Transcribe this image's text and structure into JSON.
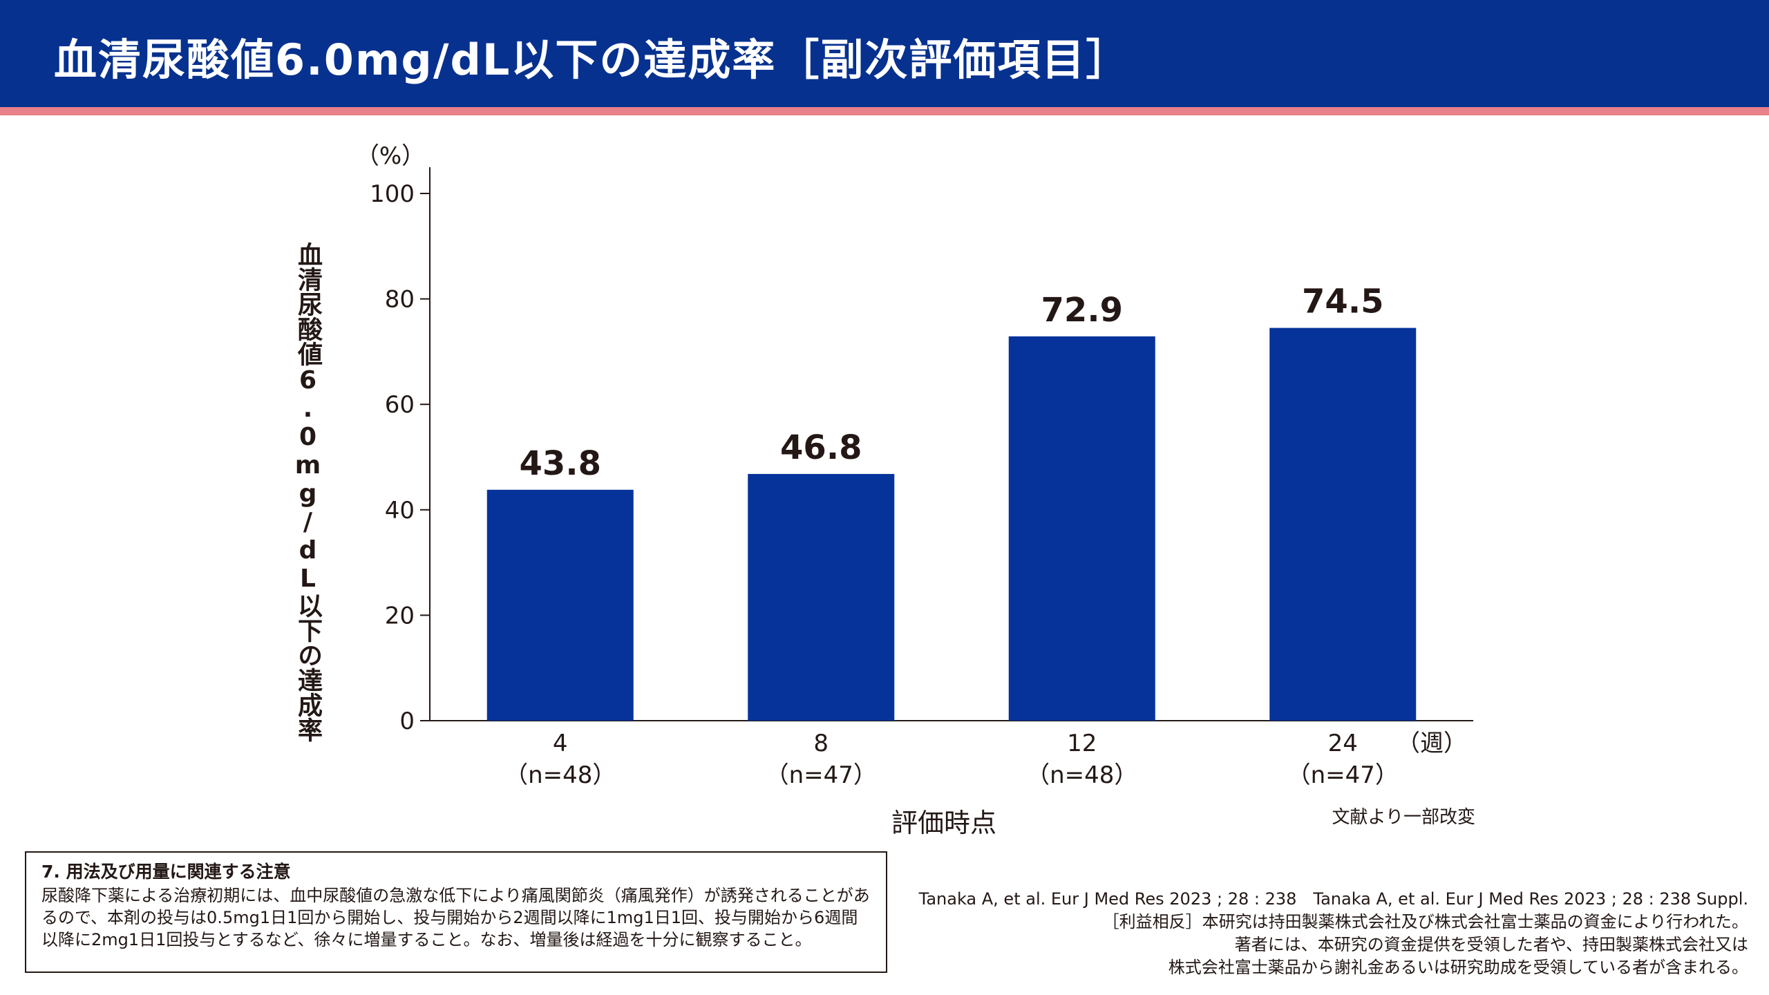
{
  "header": {
    "title": "血清尿酸値6.0mg/dL以下の達成率［副次評価項目］",
    "background_color": "#06318f",
    "stripe_color": "#e8818a"
  },
  "chart_data": {
    "type": "bar",
    "categories": [
      "4",
      "8",
      "12",
      "24"
    ],
    "category_sublabels": [
      "（n=48）",
      "（n=47）",
      "（n=48）",
      "（n=47）"
    ],
    "values": [
      43.8,
      46.8,
      72.9,
      74.5
    ],
    "data_labels": [
      "43.8",
      "46.8",
      "72.9",
      "74.5"
    ],
    "bar_color": "#06339a",
    "ylabel": "血清尿酸値6.0mg/dL以下の達成率",
    "y_unit": "（%）",
    "x_unit": "（週）",
    "xlabel": "評価時点",
    "ylim": [
      0,
      100
    ],
    "yticks": [
      0,
      20,
      40,
      60,
      80,
      100
    ],
    "grid": false
  },
  "source_note": "文献より一部改変",
  "notice": {
    "heading": "7. 用法及び用量に関連する注意",
    "body": "尿酸降下薬による治療初期には、血中尿酸値の急激な低下により痛風関節炎（痛風発作）が誘発されることがあるので、本剤の投与は0.5mg1日1回から開始し、投与開始から2週間以降に1mg1日1回、投与開始から6週間以降に2mg1日1回投与とするなど、徐々に増量すること。なお、増量後は経過を十分に観察すること。"
  },
  "references": [
    "Tanaka A, et al. Eur J Med Res 2023 ; 28 : 238　Tanaka A, et al. Eur J Med Res 2023 ; 28 : 238 Suppl.",
    "［利益相反］本研究は持田製薬株式会社及び株式会社富士薬品の資金により行われた。",
    "著者には、本研究の資金提供を受領した者や、持田製薬株式会社又は",
    "株式会社富士薬品から謝礼金あるいは研究助成を受領している者が含まれる。"
  ]
}
